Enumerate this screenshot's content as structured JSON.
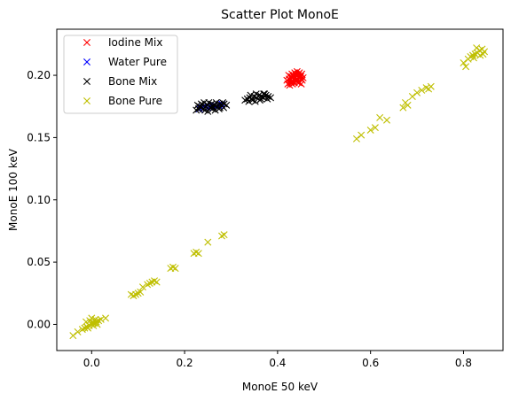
{
  "chart_data": {
    "type": "scatter",
    "title": "Scatter Plot MonoE",
    "xlabel": "MonoE 50 keV",
    "ylabel": "MonoE 100 keV",
    "xlim": [
      -0.075,
      0.885
    ],
    "ylim": [
      -0.021,
      0.237
    ],
    "xticks": [
      0.0,
      0.2,
      0.4,
      0.6,
      0.8
    ],
    "xtick_labels": [
      "0.0",
      "0.2",
      "0.4",
      "0.6",
      "0.8"
    ],
    "yticks": [
      0.0,
      0.05,
      0.1,
      0.15,
      0.2
    ],
    "ytick_labels": [
      "0.00",
      "0.05",
      "0.10",
      "0.15",
      "0.20"
    ],
    "grid": false,
    "legend_position": "top-left",
    "marker": "x",
    "series": [
      {
        "name": "Iodine Mix",
        "color": "#ff0000",
        "x": [
          0.42,
          0.425,
          0.43,
          0.435,
          0.44,
          0.445,
          0.45,
          0.455,
          0.422,
          0.428,
          0.433,
          0.438,
          0.443,
          0.448,
          0.453,
          0.424,
          0.431,
          0.437,
          0.442,
          0.447,
          0.452,
          0.426,
          0.432,
          0.436,
          0.441,
          0.446,
          0.451,
          0.429,
          0.434,
          0.439,
          0.444,
          0.449,
          0.427,
          0.435,
          0.44,
          0.445,
          0.45,
          0.43,
          0.438,
          0.446
        ],
        "y": [
          0.196,
          0.197,
          0.198,
          0.199,
          0.2,
          0.201,
          0.199,
          0.198,
          0.193,
          0.194,
          0.195,
          0.196,
          0.197,
          0.198,
          0.196,
          0.2,
          0.201,
          0.202,
          0.203,
          0.202,
          0.201,
          0.192,
          0.193,
          0.194,
          0.195,
          0.194,
          0.193,
          0.199,
          0.2,
          0.201,
          0.2,
          0.199,
          0.196,
          0.197,
          0.196,
          0.195,
          0.197,
          0.195,
          0.198,
          0.199
        ]
      },
      {
        "name": "Water Pure",
        "color": "#0000ff",
        "x": [
          0.232,
          0.238,
          0.244,
          0.25,
          0.256,
          0.262,
          0.268,
          0.274,
          0.28
        ],
        "y": [
          0.173,
          0.174,
          0.175,
          0.174,
          0.175,
          0.176,
          0.175,
          0.176,
          0.177
        ]
      },
      {
        "name": "Bone Mix",
        "color": "#000000",
        "x": [
          0.225,
          0.23,
          0.235,
          0.24,
          0.245,
          0.25,
          0.255,
          0.26,
          0.265,
          0.27,
          0.275,
          0.28,
          0.285,
          0.29,
          0.228,
          0.236,
          0.244,
          0.252,
          0.26,
          0.268,
          0.276,
          0.284,
          0.232,
          0.242,
          0.25,
          0.258,
          0.266,
          0.274,
          0.282,
          0.33,
          0.335,
          0.34,
          0.345,
          0.35,
          0.355,
          0.36,
          0.365,
          0.37,
          0.375,
          0.38,
          0.385,
          0.338,
          0.346,
          0.354,
          0.362,
          0.37,
          0.378,
          0.342,
          0.352,
          0.364,
          0.372
        ],
        "y": [
          0.172,
          0.173,
          0.174,
          0.173,
          0.175,
          0.176,
          0.174,
          0.175,
          0.176,
          0.175,
          0.177,
          0.176,
          0.177,
          0.176,
          0.176,
          0.177,
          0.172,
          0.178,
          0.173,
          0.178,
          0.174,
          0.174,
          0.175,
          0.178,
          0.171,
          0.177,
          0.172,
          0.173,
          0.178,
          0.18,
          0.181,
          0.182,
          0.181,
          0.183,
          0.182,
          0.184,
          0.183,
          0.182,
          0.184,
          0.183,
          0.182,
          0.179,
          0.18,
          0.185,
          0.18,
          0.185,
          0.181,
          0.184,
          0.179,
          0.181,
          0.185
        ]
      },
      {
        "name": "Bone Pure",
        "color": "#bfbf00",
        "x": [
          -0.04,
          -0.03,
          -0.02,
          -0.015,
          -0.01,
          -0.005,
          0.0,
          0.003,
          0.006,
          0.01,
          0.015,
          0.02,
          0.03,
          -0.012,
          -0.004,
          0.004,
          0.012,
          -0.008,
          0.008,
          0.0,
          0.09,
          0.095,
          0.1,
          0.105,
          0.085,
          0.11,
          0.12,
          0.125,
          0.13,
          0.135,
          0.14,
          0.17,
          0.175,
          0.18,
          0.22,
          0.225,
          0.23,
          0.25,
          0.28,
          0.285,
          0.57,
          0.58,
          0.6,
          0.61,
          0.62,
          0.635,
          0.67,
          0.675,
          0.68,
          0.69,
          0.7,
          0.71,
          0.72,
          0.725,
          0.73,
          0.8,
          0.805,
          0.81,
          0.815,
          0.82,
          0.825,
          0.83,
          0.835,
          0.84,
          0.845,
          0.828,
          0.836,
          0.822,
          0.842
        ],
        "y": [
          -0.009,
          -0.006,
          -0.004,
          -0.003,
          -0.002,
          -0.001,
          0.0,
          0.001,
          0.001,
          0.002,
          0.003,
          0.004,
          0.005,
          0.002,
          0.003,
          -0.001,
          0.0,
          -0.003,
          0.004,
          0.005,
          0.023,
          0.024,
          0.025,
          0.026,
          0.024,
          0.03,
          0.032,
          0.033,
          0.034,
          0.035,
          0.034,
          0.045,
          0.046,
          0.045,
          0.057,
          0.058,
          0.057,
          0.066,
          0.071,
          0.072,
          0.149,
          0.152,
          0.156,
          0.158,
          0.166,
          0.164,
          0.174,
          0.178,
          0.176,
          0.183,
          0.186,
          0.188,
          0.19,
          0.189,
          0.191,
          0.21,
          0.207,
          0.213,
          0.215,
          0.216,
          0.217,
          0.218,
          0.22,
          0.221,
          0.219,
          0.222,
          0.216,
          0.214,
          0.217
        ]
      }
    ]
  }
}
